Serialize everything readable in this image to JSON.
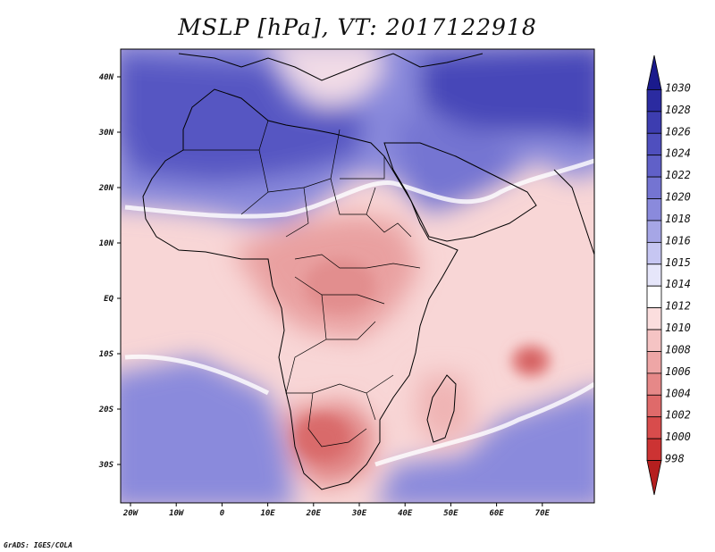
{
  "title": "MSLP [hPa], VT: 2017122918",
  "credit": "GrADS: IGES/COLA",
  "axes": {
    "lat_labels": [
      "40N",
      "30N",
      "20N",
      "10N",
      "EQ",
      "10S",
      "20S",
      "30S"
    ],
    "lon_labels": [
      "20W",
      "10W",
      "0",
      "10E",
      "20E",
      "30E",
      "40E",
      "50E",
      "60E",
      "70E"
    ]
  },
  "colorbar": {
    "levels": [
      "1030",
      "1028",
      "1026",
      "1024",
      "1022",
      "1020",
      "1018",
      "1016",
      "1015",
      "1014",
      "1012",
      "1010",
      "1008",
      "1006",
      "1004",
      "1002",
      "1000",
      "998"
    ],
    "colors": [
      "#1a1a8c",
      "#2b2ba0",
      "#3d3db0",
      "#4f4fbe",
      "#6060c8",
      "#7474d2",
      "#8a8adc",
      "#a6a6e6",
      "#c6c6f2",
      "#e6e6fa",
      "#ffffff",
      "#fbdede",
      "#f5c4c4",
      "#eea6a6",
      "#e68888",
      "#df6a6a",
      "#d84c4c",
      "#cc3333",
      "#b51f1f"
    ]
  },
  "colors": {
    "high_deep": "#3a3ab6",
    "high_mid": "#6464cc",
    "high_light": "#a8a8e8",
    "neutral": "#f6e8f0",
    "low_light": "#f8d4d4",
    "low_mid": "#eba8a8",
    "low_deep": "#d97070"
  }
}
